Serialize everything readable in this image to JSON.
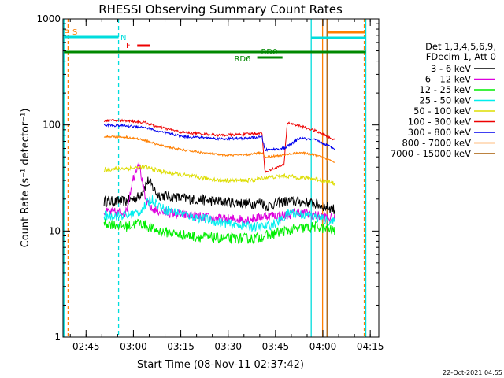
{
  "chart_data": {
    "type": "line",
    "title": "RHESSI Observing Summary Count Rates",
    "xlabel": "Start Time (08-Nov-11 02:37:42)",
    "ylabel": "Count Rate (s⁻¹ detector⁻¹)",
    "xlim_minutes": [
      0,
      100
    ],
    "xticks": [
      {
        "label": "02:45",
        "minutes": 7.3
      },
      {
        "label": "03:00",
        "minutes": 22.3
      },
      {
        "label": "03:15",
        "minutes": 37.3
      },
      {
        "label": "03:30",
        "minutes": 52.3
      },
      {
        "label": "03:45",
        "minutes": 67.3
      },
      {
        "label": "04:00",
        "minutes": 82.3
      },
      {
        "label": "04:15",
        "minutes": 97.3
      }
    ],
    "ylim": [
      1,
      1000
    ],
    "yscale": "log",
    "yticks": [
      {
        "label": "1",
        "value": 1
      },
      {
        "label": "10",
        "value": 10
      },
      {
        "label": "100",
        "value": 100
      },
      {
        "label": "1000",
        "value": 1000
      }
    ],
    "legend": {
      "header": [
        "Det 1,3,4,5,6,9,",
        "FDecim 1, Att 0"
      ],
      "placement": "right"
    },
    "series": [
      {
        "name": "3 - 6 keV",
        "color": "#000000",
        "x": [
          13,
          20,
          24,
          27,
          30,
          40,
          50,
          60,
          63,
          64,
          70,
          75,
          80,
          86
        ],
        "y": [
          19,
          19,
          21,
          30,
          22,
          20,
          19,
          18,
          19,
          17,
          19,
          19,
          18,
          16
        ]
      },
      {
        "name": "6 - 12 keV",
        "color": "#dd00dd",
        "x": [
          13,
          20,
          22,
          24,
          26,
          28,
          32,
          40,
          50,
          60,
          64,
          70,
          75,
          80,
          86
        ],
        "y": [
          15,
          15,
          30,
          46,
          20,
          16,
          15,
          14,
          13,
          13,
          14,
          14,
          15,
          14,
          13
        ]
      },
      {
        "name": "12 - 25 keV",
        "color": "#00ee00",
        "x": [
          13,
          20,
          24,
          30,
          40,
          50,
          60,
          64,
          70,
          80,
          86
        ],
        "y": [
          12,
          11,
          12,
          10,
          9,
          8.5,
          8.5,
          9,
          10,
          11,
          10
        ]
      },
      {
        "name": "25 - 50 keV",
        "color": "#00eeee",
        "x": [
          13,
          20,
          24,
          28,
          32,
          40,
          50,
          60,
          64,
          68,
          72,
          78,
          86
        ],
        "y": [
          14,
          14,
          15,
          20,
          16,
          14,
          12,
          11,
          11,
          12,
          15,
          14,
          12
        ]
      },
      {
        "name": "50 - 100 keV",
        "color": "#dddd00",
        "x": [
          13,
          20,
          26,
          32,
          40,
          50,
          60,
          64,
          70,
          80,
          86
        ],
        "y": [
          38,
          39,
          40,
          36,
          33,
          30,
          30,
          32,
          33,
          31,
          28
        ]
      },
      {
        "name": "100 - 300 keV",
        "color": "#ee0000",
        "x": [
          13,
          20,
          26,
          30,
          38,
          50,
          58,
          63,
          64,
          66,
          70,
          71,
          75,
          80,
          86
        ],
        "y": [
          110,
          110,
          105,
          96,
          85,
          80,
          82,
          84,
          36,
          38,
          42,
          105,
          98,
          88,
          72
        ]
      },
      {
        "name": "300 - 800 keV",
        "color": "#0000ee",
        "x": [
          13,
          20,
          26,
          30,
          38,
          50,
          58,
          63,
          64,
          70,
          75,
          80,
          86
        ],
        "y": [
          100,
          98,
          95,
          87,
          78,
          74,
          75,
          77,
          58,
          60,
          75,
          72,
          60
        ]
      },
      {
        "name": "800 - 7000 keV",
        "color": "#ff7f00",
        "x": [
          13,
          20,
          26,
          30,
          38,
          50,
          58,
          63,
          64,
          70,
          75,
          80,
          86
        ],
        "y": [
          78,
          77,
          72,
          65,
          58,
          52,
          52,
          55,
          50,
          52,
          55,
          52,
          45
        ]
      },
      {
        "name": "7000 - 15000 keV",
        "color": "#a65a00",
        "x": [],
        "y": []
      }
    ],
    "annotations": [
      {
        "label": "E",
        "color": "#ff7f00"
      },
      {
        "label": "S",
        "color": "#ff7f00"
      },
      {
        "label": "N",
        "color": "#00dddd"
      },
      {
        "label": "F",
        "color": "#ee0000"
      },
      {
        "label": "RD0",
        "color": "#008800"
      },
      {
        "label": "RD6",
        "color": "#008800"
      }
    ],
    "timestamp": "22-Oct-2021 04:55"
  }
}
